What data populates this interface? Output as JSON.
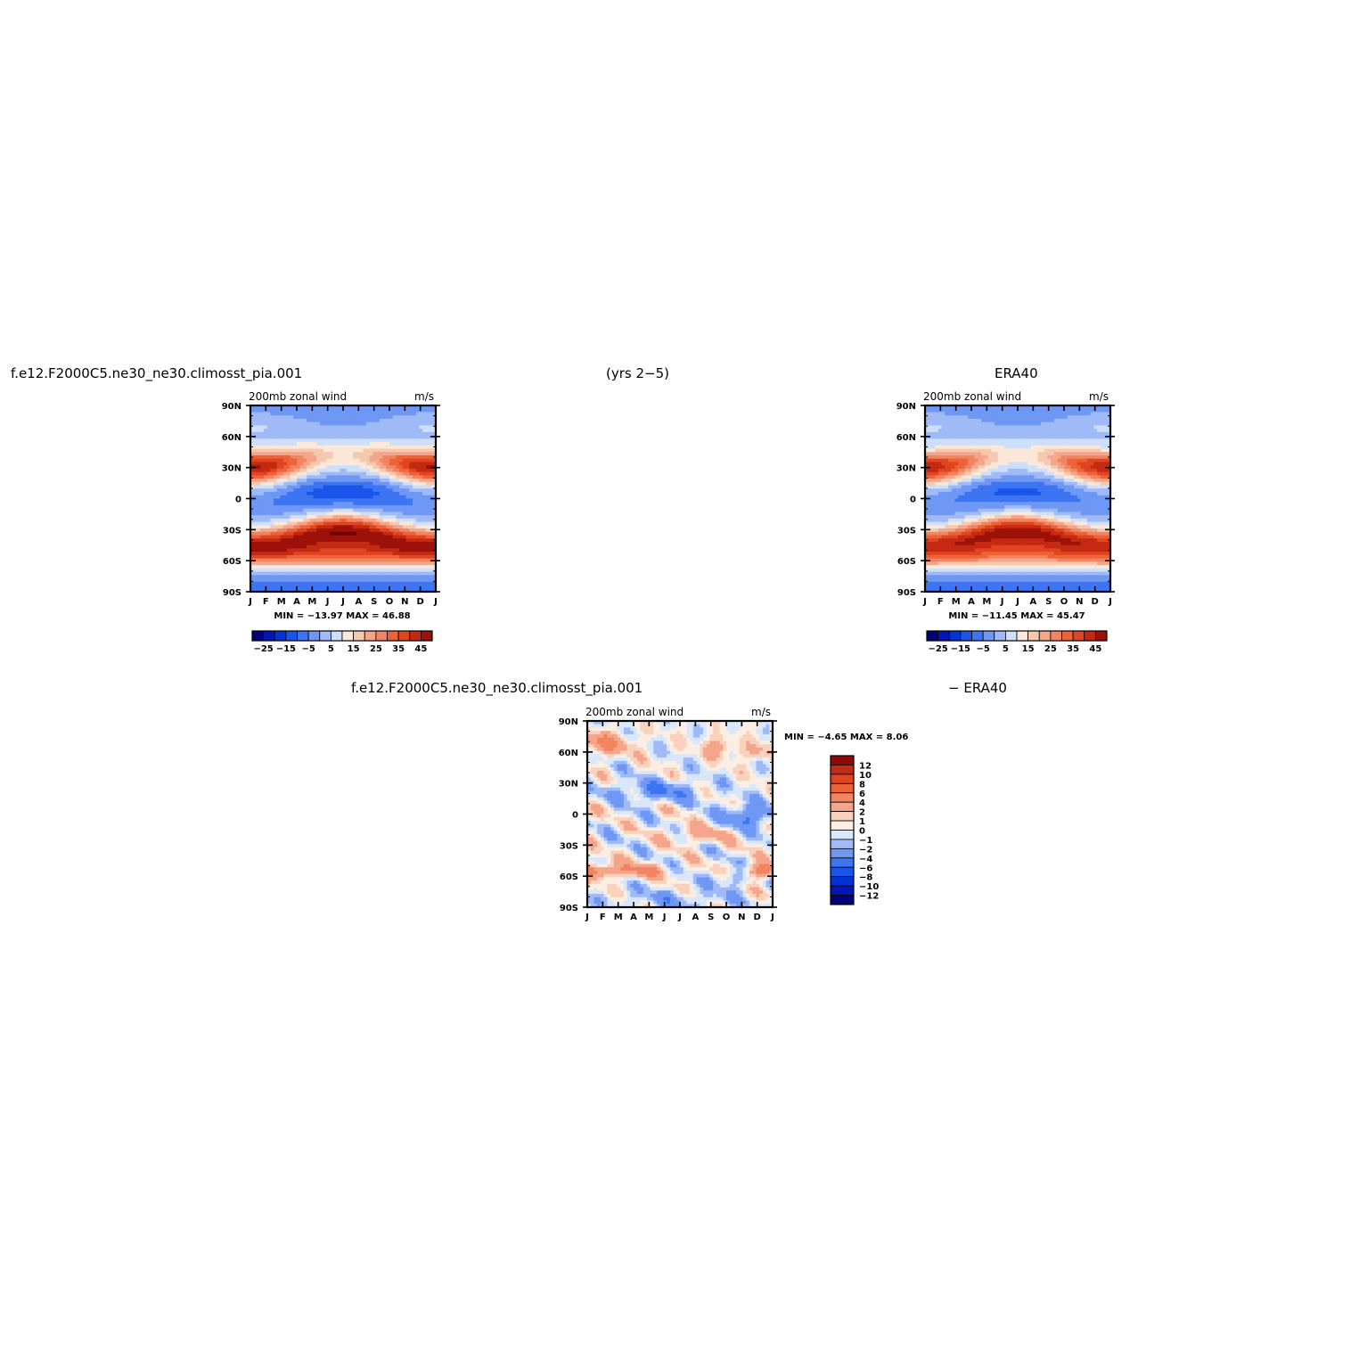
{
  "header": {
    "case_name": "f.e12.F2000C5.ne30_ne30.climosst_pia.001",
    "years": "(yrs 2−5)",
    "obs_name": "ERA40",
    "diff_case": "f.e12.F2000C5.ne30_ne30.climosst_pia.001",
    "diff_obs": "− ERA40"
  },
  "chart_data": [
    {
      "type": "heatmap",
      "panel": "model",
      "title": "200mb zonal wind",
      "units": "m/s",
      "x_ticks": [
        "J",
        "F",
        "M",
        "A",
        "M",
        "J",
        "J",
        "A",
        "S",
        "O",
        "N",
        "D",
        "J"
      ],
      "y_ticks": [
        "90N",
        "60N",
        "30N",
        "0",
        "30S",
        "60S",
        "90S"
      ],
      "min_label": "MIN = −13.97",
      "max_label": "MAX =   46.88",
      "min": -13.97,
      "max": 46.88,
      "levels": [
        -30,
        -25,
        -20,
        -15,
        -10,
        -5,
        0,
        5,
        10,
        15,
        20,
        25,
        30,
        35,
        40,
        45,
        50
      ],
      "colorbar_labels": [
        "−25",
        "−15",
        "−5",
        "5",
        "15",
        "25",
        "35",
        "45"
      ],
      "field": {
        "nh_jet": {
          "lat": 30,
          "winter_max": 46,
          "summer_min": 14
        },
        "sh_jet": {
          "lat": -30,
          "winter_max": 45
        },
        "sh_highlat": {
          "lat": -50,
          "value": 33
        },
        "equator_summer_min": -13.97
      }
    },
    {
      "type": "heatmap",
      "panel": "obs",
      "title": "200mb zonal wind",
      "units": "m/s",
      "x_ticks": [
        "J",
        "F",
        "M",
        "A",
        "M",
        "J",
        "J",
        "A",
        "S",
        "O",
        "N",
        "D",
        "J"
      ],
      "y_ticks": [
        "90N",
        "60N",
        "30N",
        "0",
        "30S",
        "60S",
        "90S"
      ],
      "min_label": "MIN = −11.45",
      "max_label": "MAX =   45.47",
      "min": -11.45,
      "max": 45.47,
      "levels": [
        -30,
        -25,
        -20,
        -15,
        -10,
        -5,
        0,
        5,
        10,
        15,
        20,
        25,
        30,
        35,
        40,
        45,
        50
      ],
      "colorbar_labels": [
        "−25",
        "−15",
        "−5",
        "5",
        "15",
        "25",
        "35",
        "45"
      ],
      "field": {
        "nh_jet": {
          "lat": 30,
          "winter_max": 44,
          "summer_min": 12
        },
        "sh_jet": {
          "lat": -30,
          "winter_max": 44
        },
        "sh_highlat": {
          "lat": -50,
          "value": 30
        },
        "equator_summer_min": -11.45
      }
    },
    {
      "type": "heatmap",
      "panel": "difference",
      "title": "200mb zonal wind",
      "units": "m/s",
      "x_ticks": [
        "J",
        "F",
        "M",
        "A",
        "M",
        "J",
        "J",
        "A",
        "S",
        "O",
        "N",
        "D",
        "J"
      ],
      "y_ticks": [
        "90N",
        "60N",
        "30N",
        "0",
        "30S",
        "60S",
        "90S"
      ],
      "min_label": "MIN =   −4.65",
      "max_label": "MAX =    8.06",
      "min": -4.65,
      "max": 8.06,
      "levels": [
        -14,
        -12,
        -10,
        -8,
        -6,
        -4,
        -2,
        -1,
        0,
        1,
        2,
        4,
        6,
        8,
        10,
        12,
        14
      ],
      "colorbar_labels": [
        "12",
        "10",
        "8",
        "6",
        "4",
        "2",
        "1",
        "0",
        "−1",
        "−2",
        "−4",
        "−6",
        "−8",
        "−10",
        "−12"
      ]
    }
  ],
  "colors": {
    "full_palette": [
      "#00007a",
      "#0016b8",
      "#0033d6",
      "#1a55ea",
      "#3c74f2",
      "#6f97f4",
      "#9fbaf7",
      "#cddff9",
      "#fbe8d8",
      "#f7c8b0",
      "#f4a58a",
      "#f18461",
      "#ee6238",
      "#e04522",
      "#c42a12",
      "#9c120a",
      "#700000"
    ],
    "diff_palette": [
      "#00007a",
      "#0016b8",
      "#0033d6",
      "#1a55ea",
      "#3c74f2",
      "#6f97f4",
      "#9fbaf7",
      "#d9e7fb",
      "#fdeee3",
      "#f9d2bd",
      "#f4a58a",
      "#f18461",
      "#ee6238",
      "#e04522",
      "#c42a12",
      "#8f0a05"
    ]
  }
}
